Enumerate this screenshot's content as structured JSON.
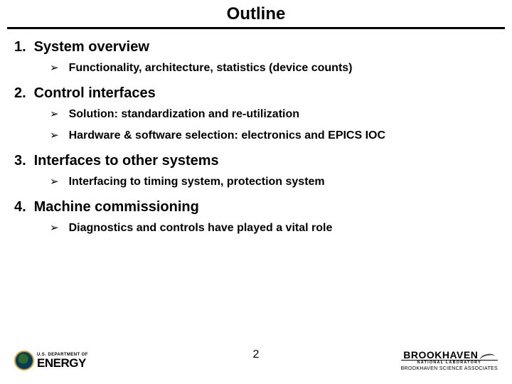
{
  "title": "Outline",
  "page_number": "2",
  "bullet_marker": "➢",
  "colors": {
    "text": "#000000",
    "background": "#ffffff",
    "rule": "#000000",
    "doe_seal_outer": "#0a3a5a",
    "doe_seal_inner": "#2b6a2b",
    "doe_seal_ring": "#c9a53b"
  },
  "typography": {
    "title_fontsize": 24,
    "section_fontsize": 20,
    "bullet_fontsize": 16,
    "font_family": "Arial",
    "title_weight": "bold",
    "section_weight": "bold",
    "bullet_weight": "bold"
  },
  "sections": [
    {
      "number": "1.",
      "heading": "System overview",
      "bullets": [
        "Functionality, architecture, statistics (device counts)"
      ]
    },
    {
      "number": "2.",
      "heading": "Control interfaces",
      "bullets": [
        "Solution: standardization and re-utilization",
        "Hardware & software selection: electronics and EPICS IOC"
      ]
    },
    {
      "number": "3.",
      "heading": "Interfaces to other systems",
      "bullets": [
        "Interfacing to timing system, protection system"
      ]
    },
    {
      "number": "4.",
      "heading": "Machine commissioning",
      "bullets": [
        "Diagnostics and controls have played a vital role"
      ]
    }
  ],
  "footer": {
    "left_logo": {
      "dept_line": "U.S. DEPARTMENT OF",
      "energy_line": "ENERGY"
    },
    "right_logo": {
      "main": "BROOKHAVEN",
      "natlab": "NATIONAL LABORATORY",
      "sub": "BROOKHAVEN SCIENCE ASSOCIATES"
    }
  }
}
